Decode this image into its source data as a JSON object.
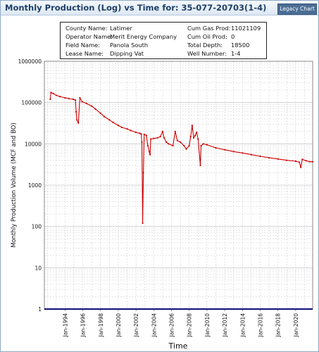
{
  "window": {
    "title": "Monthly Production (Log) vs Time for: 35-077-20703(1-4)",
    "legacy_button": "Legacy Chart"
  },
  "info": [
    [
      "County Name:",
      "Latimer"
    ],
    [
      "Operator Name:",
      "Merit Energy Company"
    ],
    [
      "Field Name:",
      "Panola South"
    ],
    [
      "Lease Name:",
      "Dipping Vat"
    ],
    [
      "Cum Gas Prod:",
      "11021109"
    ],
    [
      "Cum Oil Prod:",
      "0"
    ],
    [
      "Total Depth:",
      "18500"
    ],
    [
      "Well Number:",
      "1-4"
    ]
  ],
  "colors": {
    "gas_series": "#cc0000",
    "oil_series": "#1a1a80",
    "grid": "#c8c8c8",
    "title_text": "#1f3f66",
    "button_bg": "#4a6d94"
  },
  "chart_data": {
    "type": "line",
    "title": "Monthly Production (Log) vs Time for: 35-077-20703(1-4)",
    "xlabel": "Time",
    "ylabel": "Monthly Production Volume (MCF and BO)",
    "y_scale": "log",
    "ylim": [
      1,
      1000000
    ],
    "xlim": [
      "1991-09",
      "2021-12"
    ],
    "y_ticks": [
      "1",
      "10",
      "100",
      "1000",
      "10000",
      "100000",
      "1000000"
    ],
    "x_ticks": [
      "Jan-1994",
      "Jan-1996",
      "Jan-1998",
      "Jan-2000",
      "Jan-2002",
      "Jan-2004",
      "Jan-2006",
      "Jan-2008",
      "Jan-2010",
      "Jan-2012",
      "Jan-2014",
      "Jan-2016",
      "Jan-2018",
      "Jan-2020"
    ],
    "grid": true,
    "series": [
      {
        "color": "#cc0000",
        "points": [
          [
            "1992-05",
            120000
          ],
          [
            "1992-06",
            175000
          ],
          [
            "1992-09",
            165000
          ],
          [
            "1993-01",
            150000
          ],
          [
            "1993-06",
            140000
          ],
          [
            "1994-01",
            130000
          ],
          [
            "1994-06",
            125000
          ],
          [
            "1994-12",
            120000
          ],
          [
            "1995-03",
            115000
          ],
          [
            "1995-04",
            60000
          ],
          [
            "1995-05",
            38000
          ],
          [
            "1995-07",
            32000
          ],
          [
            "1995-09",
            130000
          ],
          [
            "1995-12",
            105000
          ],
          [
            "1996-06",
            95000
          ],
          [
            "1997-01",
            82000
          ],
          [
            "1997-06",
            70000
          ],
          [
            "1998-01",
            55000
          ],
          [
            "1998-06",
            46000
          ],
          [
            "1999-01",
            38000
          ],
          [
            "1999-06",
            33000
          ],
          [
            "2000-01",
            28000
          ],
          [
            "2000-06",
            25000
          ],
          [
            "2001-01",
            23000
          ],
          [
            "2001-06",
            21000
          ],
          [
            "2002-01",
            19000
          ],
          [
            "2002-06",
            18000
          ],
          [
            "2002-08",
            17500
          ],
          [
            "2002-09",
            11000
          ],
          [
            "2002-10",
            120
          ],
          [
            "2002-11",
            2000
          ],
          [
            "2002-12",
            17000
          ],
          [
            "2003-03",
            16000
          ],
          [
            "2003-05",
            9000
          ],
          [
            "2003-07",
            6500
          ],
          [
            "2003-08",
            5500
          ],
          [
            "2003-09",
            13000
          ],
          [
            "2004-01",
            13500
          ],
          [
            "2004-06",
            14000
          ],
          [
            "2004-10",
            15000
          ],
          [
            "2005-01",
            20000
          ],
          [
            "2005-03",
            14000
          ],
          [
            "2005-06",
            11000
          ],
          [
            "2005-09",
            10000
          ],
          [
            "2006-03",
            9000
          ],
          [
            "2006-06",
            20000
          ],
          [
            "2006-09",
            12000
          ],
          [
            "2007-01",
            11000
          ],
          [
            "2007-06",
            9000
          ],
          [
            "2007-09",
            7500
          ],
          [
            "2008-01",
            9000
          ],
          [
            "2008-03",
            15000
          ],
          [
            "2008-05",
            28000
          ],
          [
            "2008-07",
            14000
          ],
          [
            "2008-09",
            16000
          ],
          [
            "2008-11",
            19000
          ],
          [
            "2009-01",
            13000
          ],
          [
            "2009-04",
            3000
          ],
          [
            "2009-05",
            9000
          ],
          [
            "2009-08",
            10000
          ],
          [
            "2010-01",
            9500
          ],
          [
            "2011-01",
            8000
          ],
          [
            "2012-01",
            7200
          ],
          [
            "2013-01",
            6500
          ],
          [
            "2014-01",
            6000
          ],
          [
            "2015-01",
            5500
          ],
          [
            "2016-01",
            5000
          ],
          [
            "2017-01",
            4600
          ],
          [
            "2018-01",
            4300
          ],
          [
            "2019-01",
            4000
          ],
          [
            "2020-01",
            3800
          ],
          [
            "2020-06",
            3600
          ],
          [
            "2020-08",
            2700
          ],
          [
            "2020-10",
            4200
          ],
          [
            "2021-03",
            3900
          ],
          [
            "2021-08",
            3700
          ],
          [
            "2021-12",
            3700
          ]
        ]
      },
      {
        "color": "#1a1a80",
        "points": [
          [
            "1991-09",
            1
          ],
          [
            "2021-12",
            1
          ]
        ]
      }
    ]
  }
}
